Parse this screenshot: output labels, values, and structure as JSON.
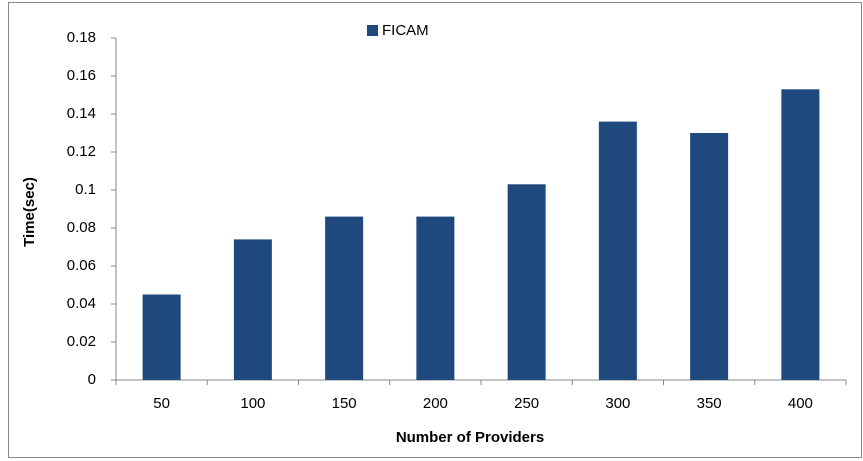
{
  "chart_data": {
    "type": "bar",
    "legend": "FICAM",
    "xlabel": "Number of Providers",
    "ylabel": "Time(sec)",
    "categories": [
      "50",
      "100",
      "150",
      "200",
      "250",
      "300",
      "350",
      "400"
    ],
    "series": [
      {
        "name": "FICAM",
        "color": "#1f497d",
        "values": [
          0.045,
          0.074,
          0.086,
          0.086,
          0.103,
          0.136,
          0.13,
          0.153
        ]
      }
    ],
    "ylim": [
      0,
      0.18
    ],
    "yticks": [
      0,
      0.02,
      0.04,
      0.06,
      0.08,
      0.1,
      0.12,
      0.14,
      0.16,
      0.18
    ],
    "grid": false
  }
}
